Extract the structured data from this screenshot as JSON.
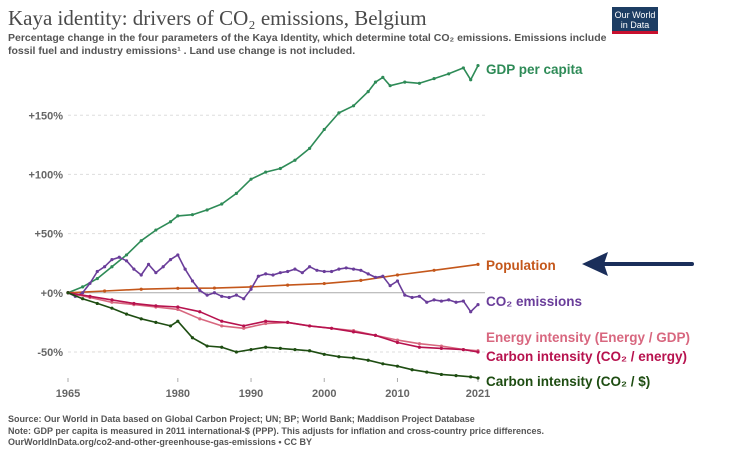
{
  "header": {
    "title": "Kaya identity: drivers of CO₂ emissions, Belgium",
    "subtitle": "Percentage change in the four parameters of the Kaya Identity, which determine total CO₂ emissions. Emissions include fossil fuel and industry emissions¹ . Land use change is not included.",
    "logo_line1": "Our World",
    "logo_line2": "in Data"
  },
  "footer": {
    "source": "Source: Our World in Data based on Global Carbon Project; UN; BP; World Bank; Maddison Project Database",
    "note": "Note: GDP per capita is measured in 2011 international-$ (PPP). This adjusts for inflation and cross-country price differences.",
    "link": "OurWorldInData.org/co2-and-other-greenhouse-gas-emissions • CC BY"
  },
  "colors": {
    "arrow": "#1a2e5a",
    "grid": "#dddddd",
    "zero_line": "#aaaaaa",
    "tick_text": "#666666"
  },
  "chart_data": {
    "type": "line",
    "ylim": [
      -72,
      195
    ],
    "xlim": [
      1965,
      2021
    ],
    "y_ticks": [
      -50,
      0,
      50,
      100,
      150
    ],
    "y_tick_labels": [
      "-50%",
      "+0%",
      "+50%",
      "+100%",
      "+150%"
    ],
    "x_ticks": [
      1965,
      1980,
      1990,
      2000,
      2010,
      2021
    ],
    "x_tick_labels": [
      "1965",
      "1980",
      "1990",
      "2000",
      "2010",
      "2021"
    ],
    "legend_placement": "inline-right",
    "annotation": "arrow pointing at Population",
    "series": [
      {
        "name": "GDP per capita",
        "color": "#2e8b57",
        "x": [
          1965,
          1967,
          1969,
          1971,
          1973,
          1975,
          1977,
          1979,
          1980,
          1982,
          1984,
          1986,
          1988,
          1990,
          1992,
          1994,
          1996,
          1998,
          2000,
          2002,
          2004,
          2006,
          2007,
          2008,
          2009,
          2011,
          2013,
          2015,
          2017,
          2019,
          2020,
          2021
        ],
        "y": [
          0,
          5,
          12,
          22,
          32,
          44,
          53,
          60,
          65,
          66,
          70,
          75,
          84,
          96,
          102,
          105,
          112,
          122,
          138,
          152,
          158,
          170,
          178,
          182,
          175,
          178,
          177,
          181,
          185,
          190,
          180,
          192
        ]
      },
      {
        "name": "Population",
        "color": "#c4571b",
        "x": [
          1965,
          1970,
          1975,
          1980,
          1985,
          1990,
          1995,
          2000,
          2005,
          2010,
          2015,
          2021
        ],
        "y": [
          0,
          1.5,
          3,
          3.8,
          4,
          5,
          6.5,
          7.8,
          10.5,
          15,
          19,
          24
        ]
      },
      {
        "name": "CO₂ emissions",
        "color": "#6a3d9a",
        "x": [
          1965,
          1966,
          1967,
          1968,
          1969,
          1970,
          1971,
          1972,
          1973,
          1974,
          1975,
          1976,
          1977,
          1978,
          1979,
          1980,
          1981,
          1982,
          1983,
          1984,
          1985,
          1986,
          1987,
          1988,
          1989,
          1990,
          1991,
          1992,
          1993,
          1994,
          1995,
          1996,
          1997,
          1998,
          1999,
          2000,
          2001,
          2002,
          2003,
          2004,
          2005,
          2006,
          2007,
          2008,
          2009,
          2010,
          2011,
          2012,
          2013,
          2014,
          2015,
          2016,
          2017,
          2018,
          2019,
          2020,
          2021
        ],
        "y": [
          0,
          -3,
          0,
          8,
          18,
          22,
          28,
          30,
          27,
          20,
          15,
          24,
          17,
          22,
          28,
          32,
          20,
          10,
          2,
          -2,
          0,
          -3,
          -4,
          -2,
          -5,
          3,
          14,
          16,
          15,
          17,
          18,
          20,
          17,
          22,
          19,
          18,
          18,
          20,
          21,
          20,
          19,
          16,
          13,
          14,
          6,
          10,
          -2,
          -4,
          -3,
          -8,
          -6,
          -7,
          -6,
          -8,
          -7,
          -16,
          -10
        ]
      },
      {
        "name": "Energy intensity (Energy / GDP)",
        "color": "#d8677f",
        "x": [
          1965,
          1968,
          1971,
          1974,
          1977,
          1980,
          1983,
          1986,
          1989,
          1992,
          1995,
          1998,
          2001,
          2004,
          2007,
          2010,
          2013,
          2016,
          2019,
          2021
        ],
        "y": [
          0,
          -4,
          -8,
          -10,
          -12,
          -14,
          -22,
          -28,
          -30,
          -26,
          -25,
          -28,
          -30,
          -32,
          -36,
          -40,
          -43,
          -45,
          -48,
          -49
        ]
      },
      {
        "name": "Carbon intensity (CO₂ / energy)",
        "color": "#b7124e",
        "x": [
          1965,
          1968,
          1971,
          1974,
          1977,
          1980,
          1983,
          1986,
          1989,
          1992,
          1995,
          1998,
          2001,
          2004,
          2007,
          2010,
          2013,
          2016,
          2019,
          2021
        ],
        "y": [
          0,
          -3,
          -6,
          -9,
          -11,
          -12,
          -16,
          -24,
          -28,
          -24,
          -25,
          -28,
          -30,
          -33,
          -36,
          -42,
          -46,
          -47,
          -48,
          -50
        ]
      },
      {
        "name": "Carbon intensity (CO₂ / $)",
        "color": "#1e4d12",
        "x": [
          1965,
          1967,
          1969,
          1971,
          1973,
          1975,
          1977,
          1979,
          1980,
          1982,
          1984,
          1986,
          1988,
          1990,
          1992,
          1994,
          1996,
          1998,
          2000,
          2002,
          2004,
          2006,
          2008,
          2010,
          2012,
          2014,
          2016,
          2018,
          2020,
          2021
        ],
        "y": [
          0,
          -5,
          -9,
          -13,
          -18,
          -22,
          -25,
          -28,
          -24,
          -38,
          -45,
          -46,
          -50,
          -48,
          -46,
          -47,
          -48,
          -49,
          -52,
          -54,
          -55,
          -57,
          -60,
          -62,
          -65,
          -67,
          -69,
          -70,
          -71,
          -72
        ]
      }
    ]
  }
}
